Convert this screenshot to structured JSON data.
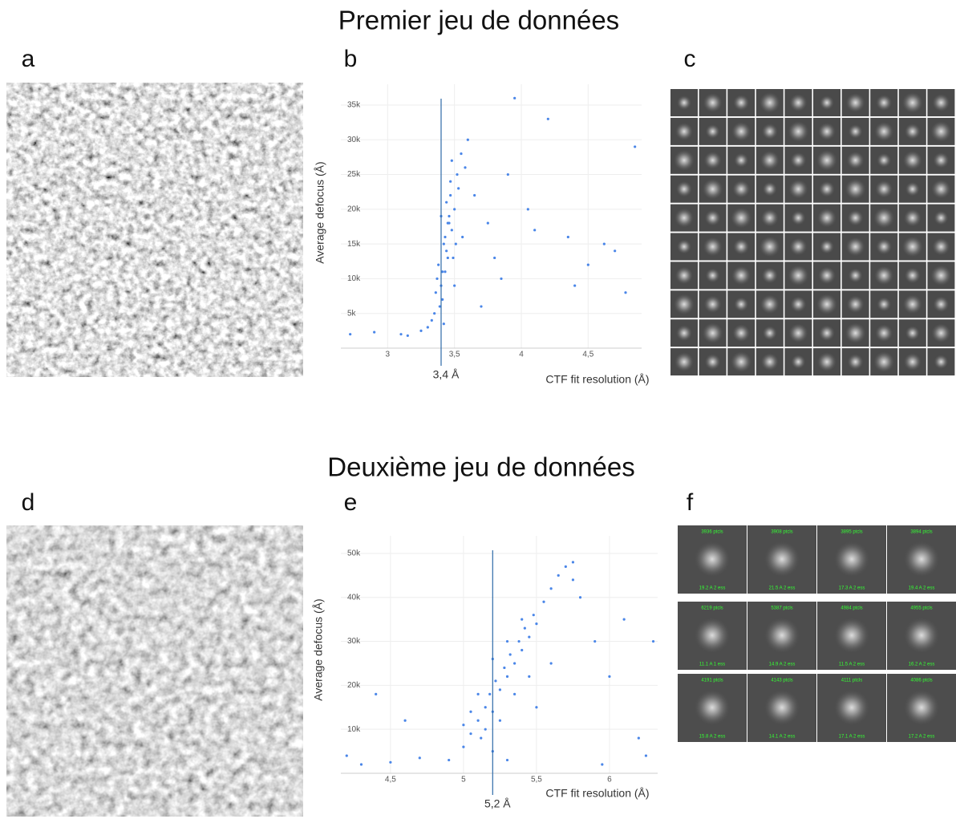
{
  "titles": [
    "Premier jeu de données",
    "Deuxième jeu de données"
  ],
  "panel_labels": [
    "a",
    "b",
    "c",
    "d",
    "e",
    "f"
  ],
  "chart_data": [
    {
      "type": "scatter",
      "xlabel": "CTF fit resolution (Å)",
      "ylabel": "Average defocus (Å)",
      "color": "#4a86e8",
      "xlim": [
        2.65,
        4.9
      ],
      "ylim": [
        0,
        38000
      ],
      "xticks": [
        {
          "value": 3,
          "label": "3"
        },
        {
          "value": 3.5,
          "label": "3,5"
        },
        {
          "value": 4,
          "label": "4"
        },
        {
          "value": 4.5,
          "label": "4,5"
        }
      ],
      "yticks": [
        {
          "value": 5000,
          "label": "5k"
        },
        {
          "value": 10000,
          "label": "10k"
        },
        {
          "value": 15000,
          "label": "15k"
        },
        {
          "value": 20000,
          "label": "20k"
        },
        {
          "value": 25000,
          "label": "25k"
        },
        {
          "value": 30000,
          "label": "30k"
        },
        {
          "value": 35000,
          "label": "35k"
        }
      ],
      "marker_line": {
        "value": 3.4,
        "label": "3,4 Å"
      },
      "x": [
        3.42,
        3.45,
        3.38,
        3.5,
        3.47,
        3.4,
        3.44,
        3.52,
        3.36,
        3.48,
        3.41,
        3.55,
        3.43,
        3.39,
        3.46,
        3.49,
        3.37,
        3.53,
        3.44,
        3.41,
        3.58,
        3.35,
        3.47,
        3.51,
        3.45,
        3.4,
        3.56,
        3.43,
        3.6,
        3.33,
        3.48,
        3.46,
        3.42,
        3.5,
        3.3,
        3.25,
        3.1,
        2.9,
        2.72,
        3.15,
        3.65,
        3.75,
        3.85,
        3.95,
        4.05,
        4.2,
        4.35,
        4.5,
        4.62,
        4.7,
        4.78,
        4.85,
        3.9,
        4.1,
        3.7,
        3.8,
        4.4
      ],
      "values": [
        15000,
        18000,
        12000,
        20000,
        22000,
        9000,
        14000,
        25000,
        8000,
        17000,
        11000,
        28000,
        16000,
        6000,
        19000,
        13000,
        10000,
        23000,
        21000,
        7000,
        26000,
        5000,
        24000,
        15000,
        13000,
        19000,
        16000,
        11000,
        30000,
        4000,
        27000,
        18000,
        3500,
        9000,
        3000,
        2500,
        2000,
        2300,
        2000,
        1800,
        22000,
        18000,
        10000,
        36000,
        20000,
        33000,
        16000,
        12000,
        15000,
        14000,
        8000,
        29000,
        25000,
        17000,
        6000,
        13000,
        9000
      ]
    },
    {
      "type": "scatter",
      "xlabel": "CTF fit resolution (Å)",
      "ylabel": "Average defocus (Å)",
      "color": "#4a86e8",
      "xlim": [
        4.16,
        6.33
      ],
      "ylim": [
        0,
        54000
      ],
      "xticks": [
        {
          "value": 4.5,
          "label": "4,5"
        },
        {
          "value": 5,
          "label": "5"
        },
        {
          "value": 5.5,
          "label": "5,5"
        },
        {
          "value": 6,
          "label": "6"
        }
      ],
      "yticks": [
        {
          "value": 10000,
          "label": "10k"
        },
        {
          "value": 20000,
          "label": "20k"
        },
        {
          "value": 30000,
          "label": "30k"
        },
        {
          "value": 40000,
          "label": "40k"
        },
        {
          "value": 50000,
          "label": "50k"
        }
      ],
      "marker_line": {
        "value": 5.2,
        "label": "5,2 Å"
      },
      "x": [
        4.9,
        5.0,
        5.05,
        5.1,
        5.12,
        5.15,
        5.18,
        5.2,
        5.22,
        5.25,
        5.28,
        5.3,
        5.32,
        5.35,
        5.38,
        5.4,
        5.42,
        5.45,
        5.48,
        5.5,
        5.55,
        5.6,
        5.65,
        5.7,
        5.75,
        5.05,
        5.1,
        5.15,
        5.2,
        5.25,
        5.3,
        5.35,
        5.4,
        5.45,
        5.0,
        5.2,
        5.3,
        4.3,
        4.5,
        4.7,
        4.2,
        5.9,
        6.0,
        6.1,
        6.2,
        6.3,
        5.8,
        5.95,
        4.6,
        5.5,
        5.6,
        5.75,
        4.4,
        6.25
      ],
      "values": [
        3000,
        6000,
        9000,
        12000,
        8000,
        15000,
        18000,
        14000,
        21000,
        19000,
        24000,
        22000,
        27000,
        25000,
        30000,
        28000,
        33000,
        31000,
        36000,
        34000,
        39000,
        42000,
        45000,
        47000,
        44000,
        14000,
        18000,
        10000,
        26000,
        12000,
        30000,
        18000,
        35000,
        22000,
        11000,
        5000,
        3000,
        2000,
        2500,
        3500,
        4000,
        30000,
        22000,
        35000,
        8000,
        30000,
        40000,
        2000,
        12000,
        15000,
        25000,
        48000,
        18000,
        4000
      ]
    }
  ],
  "class_averages": [
    [
      {
        "top": "3936 ptcls",
        "bottom": "19.2 A 2 ess"
      },
      {
        "top": "3908 ptcls",
        "bottom": "21.5 A 2 ess"
      },
      {
        "top": "3895 ptcls",
        "bottom": "17.3 A 2 ess"
      },
      {
        "top": "3894 ptcls",
        "bottom": "19.4 A 2 ess"
      }
    ],
    [
      {
        "top": "6219 ptcls",
        "bottom": "11.1 A 1 ess"
      },
      {
        "top": "5387 ptcls",
        "bottom": "14.9 A 2 ess"
      },
      {
        "top": "4984 ptcls",
        "bottom": "11.5 A 2 ess"
      },
      {
        "top": "4955 ptcls",
        "bottom": "16.2 A 2 ess"
      }
    ],
    [
      {
        "top": "4191 ptcls",
        "bottom": "15.8 A 2 ess"
      },
      {
        "top": "4143 ptcls",
        "bottom": "14.1 A 2 ess"
      },
      {
        "top": "4111 ptcls",
        "bottom": "17.1 A 2 ess"
      },
      {
        "top": "4086 ptcls",
        "bottom": "17.2 A 2 ess"
      }
    ]
  ]
}
